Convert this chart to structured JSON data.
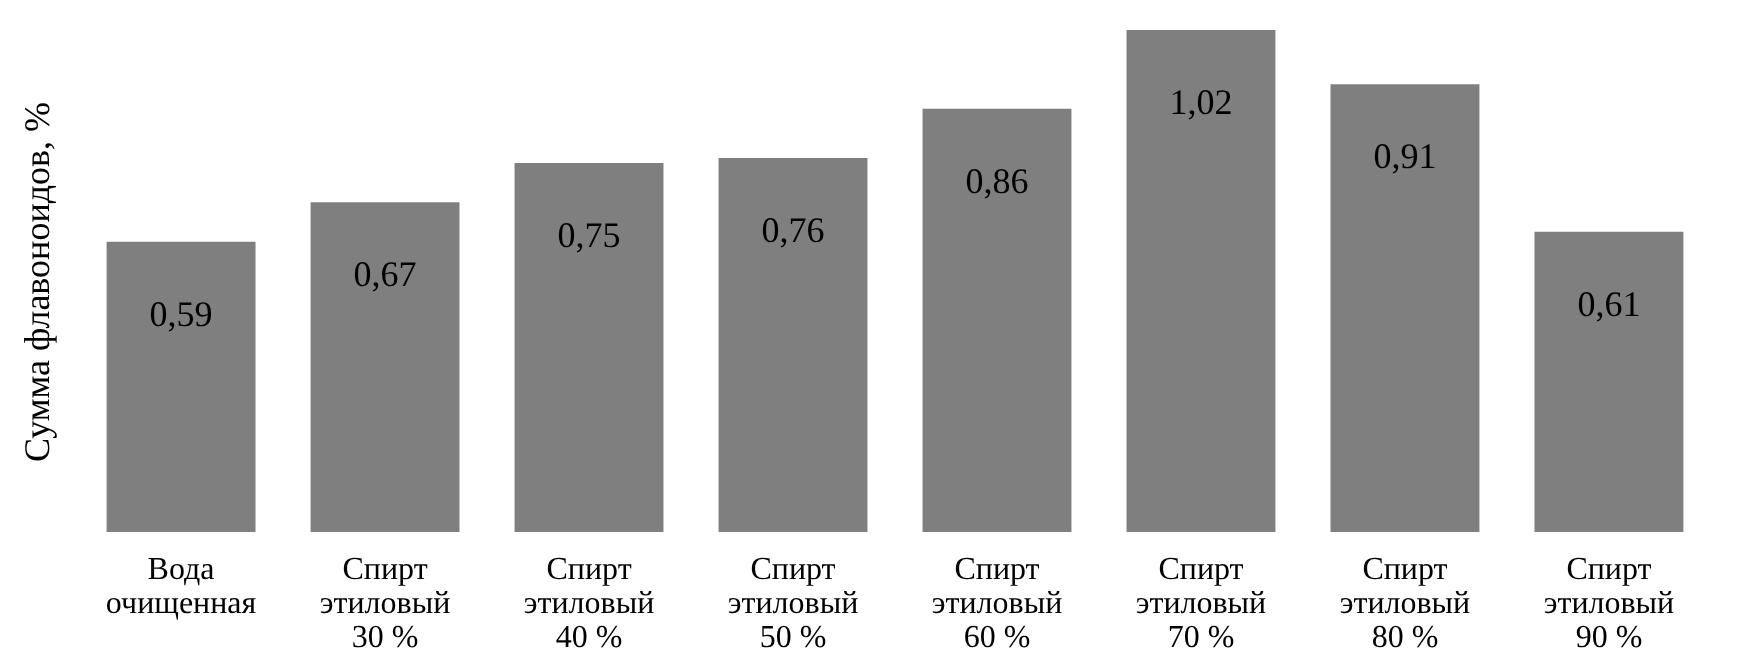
{
  "chart_data": {
    "type": "bar",
    "ylabel": "Сумма флавоноидов, %",
    "categories": [
      "Вода\nочищенная",
      "Спирт\nэтиловый\n30 %",
      "Спирт\nэтиловый\n40 %",
      "Спирт\nэтиловый\n50 %",
      "Спирт\nэтиловый\n60 %",
      "Спирт\nэтиловый\n70 %",
      "Спирт\nэтиловый\n80 %",
      "Спирт\nэтиловый\n90 %"
    ],
    "values": [
      0.59,
      0.67,
      0.75,
      0.76,
      0.86,
      1.02,
      0.91,
      0.61
    ],
    "value_labels": [
      "0,59",
      "0,67",
      "0,75",
      "0,76",
      "0,86",
      "1,02",
      "0,91",
      "0,61"
    ],
    "color": "#7f7f7f"
  }
}
